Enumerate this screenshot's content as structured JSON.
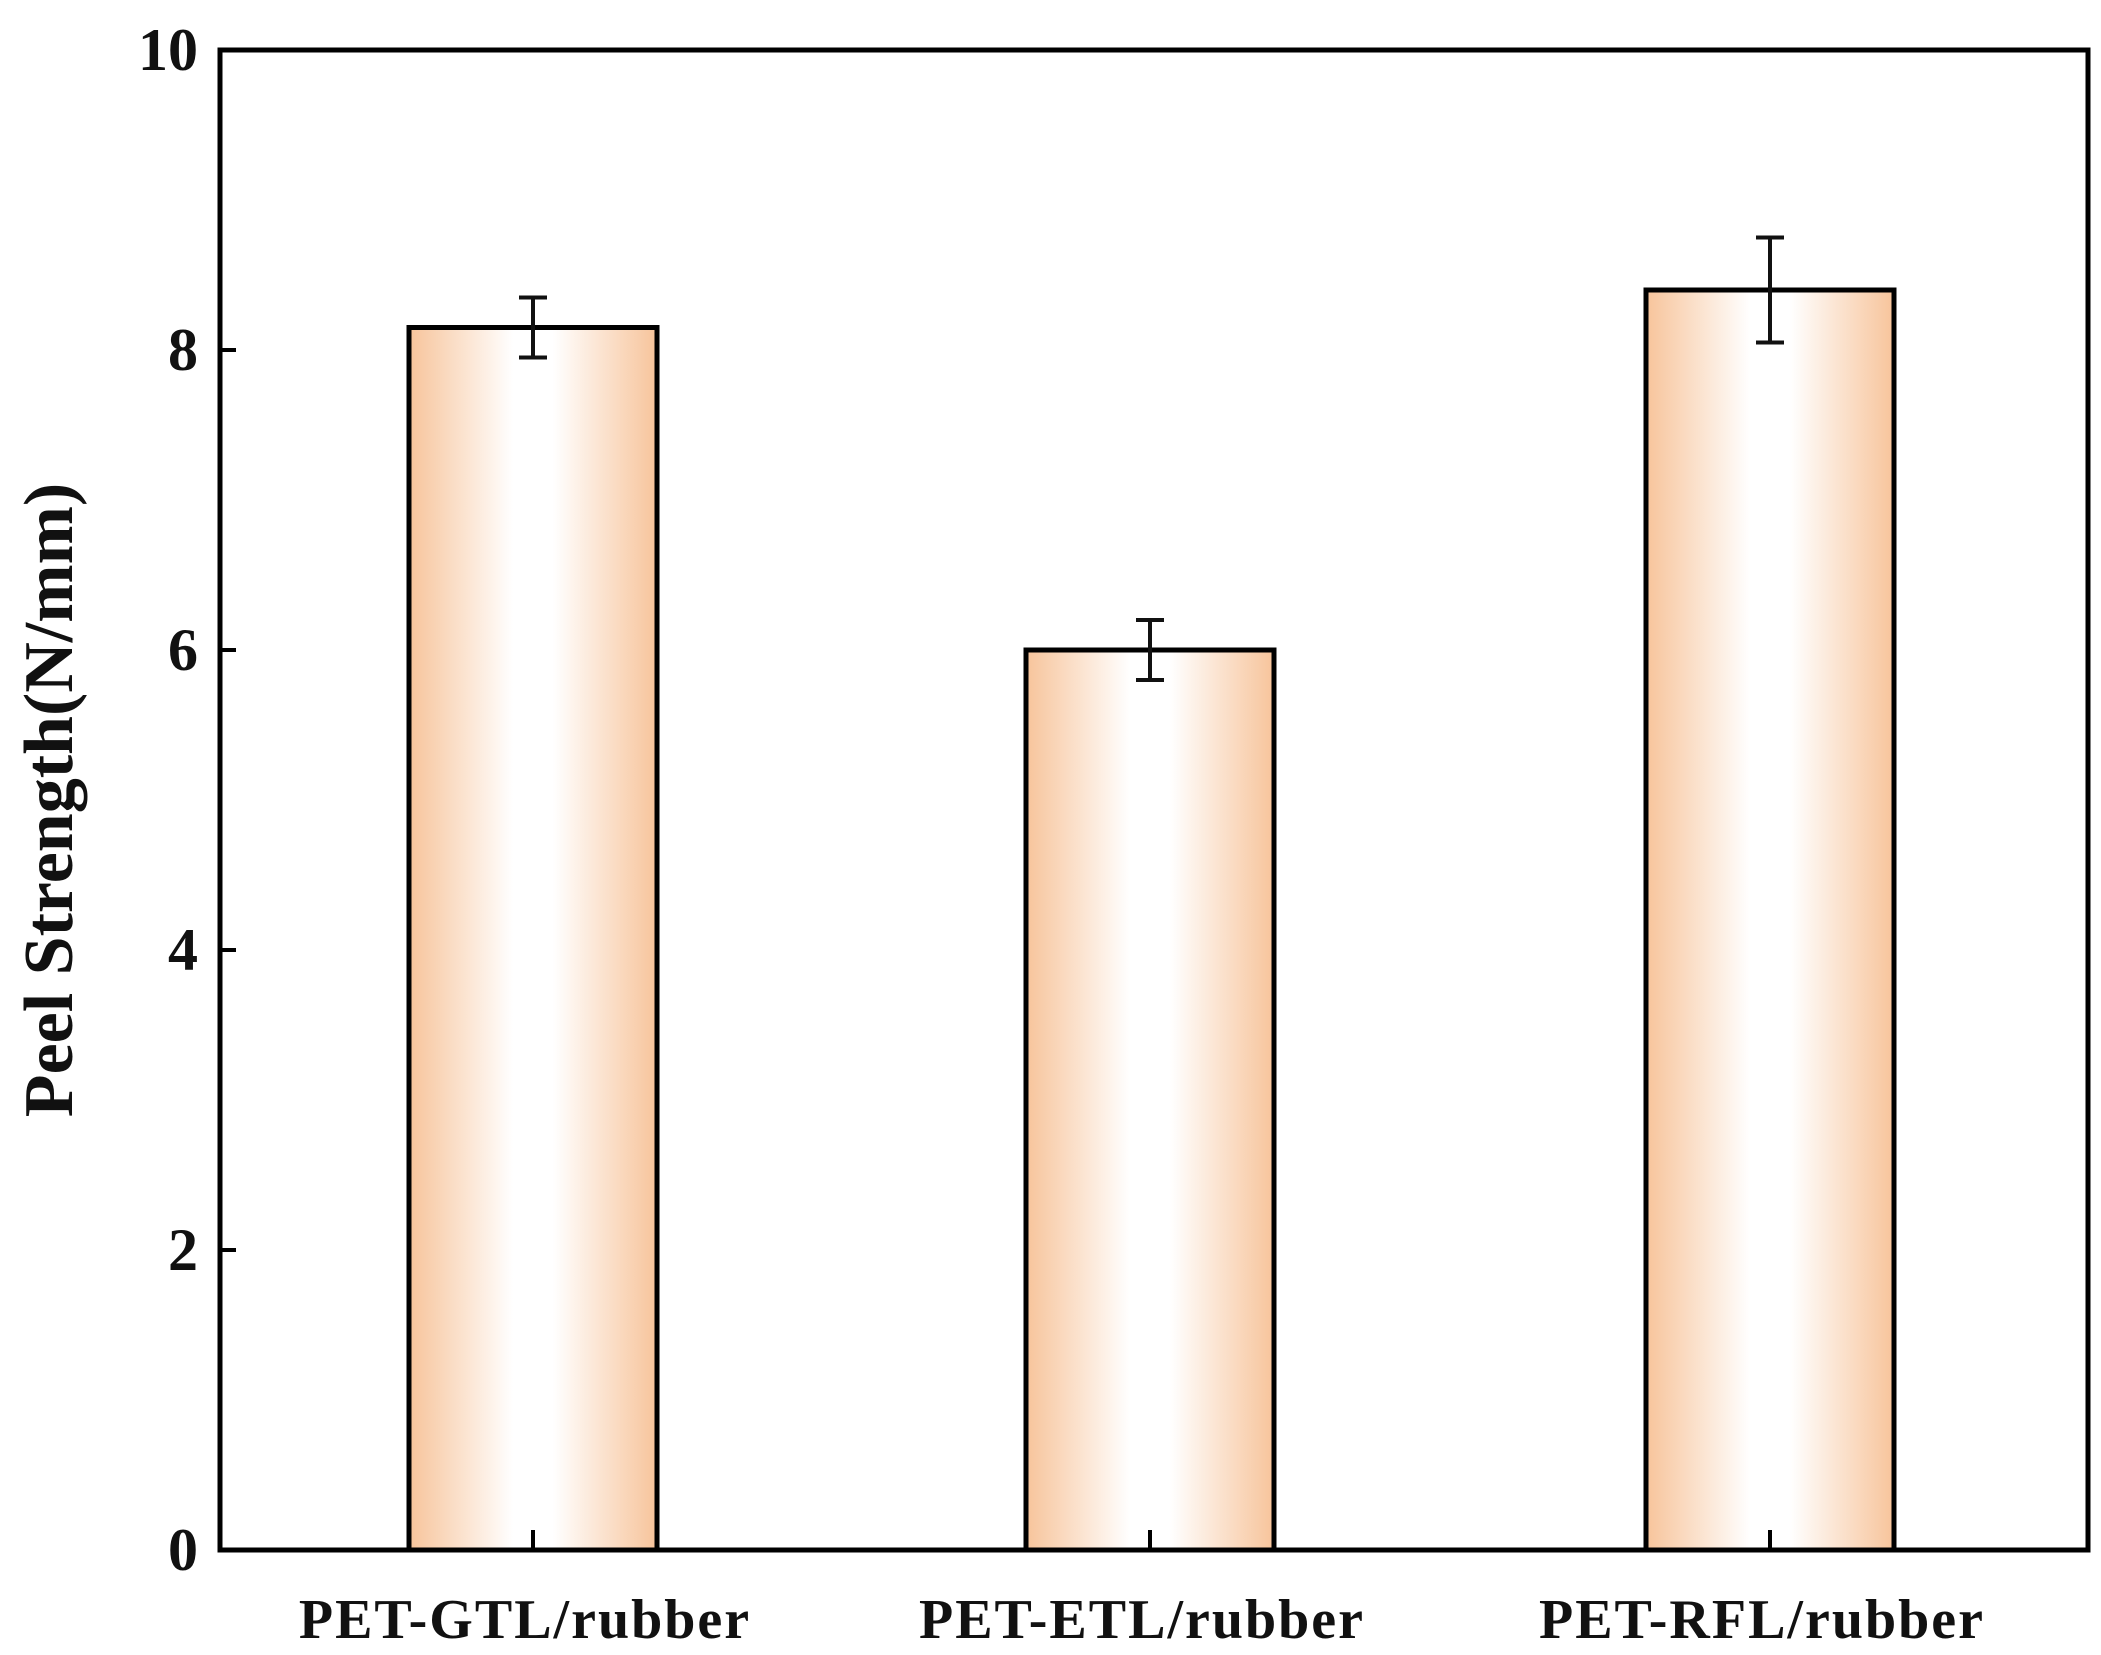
{
  "chart_data": {
    "type": "bar",
    "title": "",
    "xlabel": "",
    "ylabel": "Peel Strength(N/mm)",
    "ylim": [
      0,
      10
    ],
    "yticks": [
      "0",
      "2",
      "4",
      "6",
      "8",
      "10"
    ],
    "categories": [
      "PET-GTL/rubber",
      "PET-ETL/rubber",
      "PET-RFL/rubber"
    ],
    "values": [
      8.15,
      6.0,
      8.4
    ],
    "errors": [
      0.2,
      0.2,
      0.35
    ],
    "grid": false,
    "legend": "none",
    "bar_gradient": {
      "edge": "#f7c49b",
      "center": "#ffffff"
    },
    "bar_outline": "#000000",
    "axis_color": "#000000"
  }
}
